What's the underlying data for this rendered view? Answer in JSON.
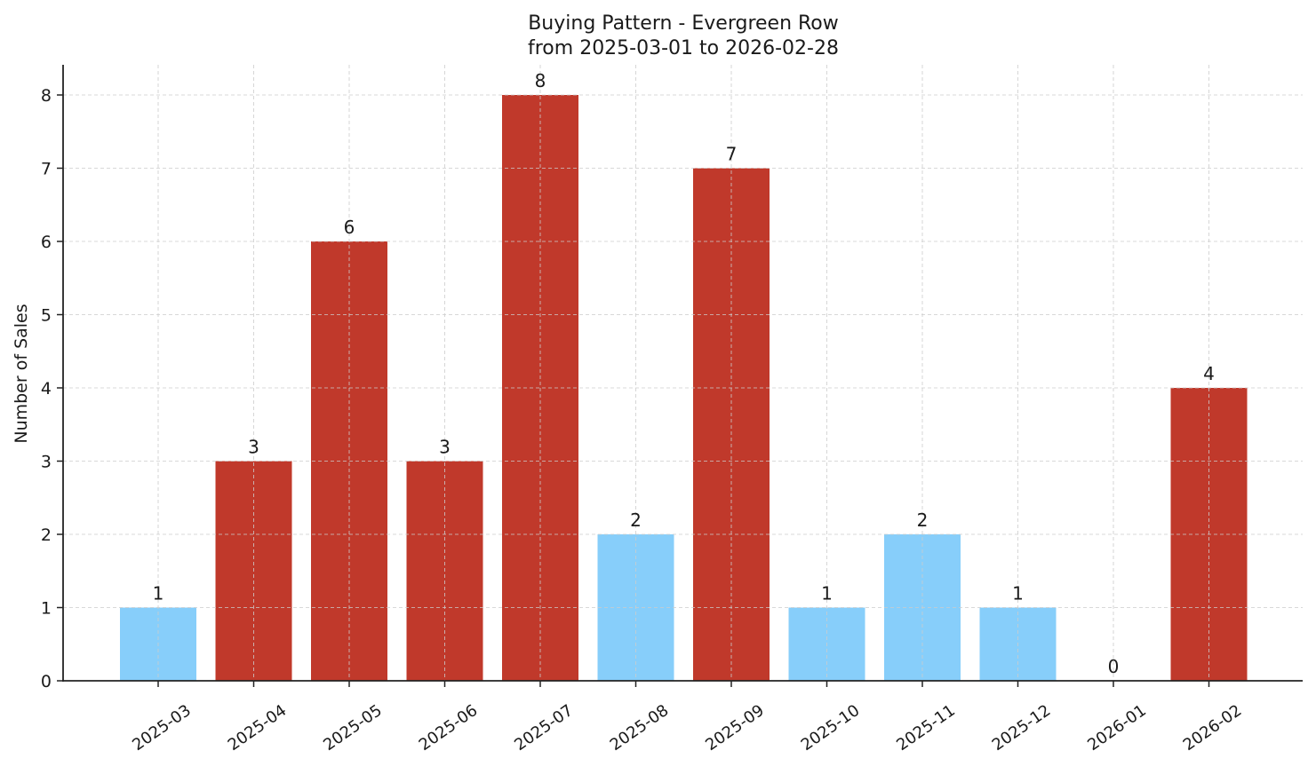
{
  "chart_data": {
    "type": "bar",
    "title": "Buying Pattern - Evergreen Row",
    "subtitle": "from 2025-03-01 to 2026-02-28",
    "xlabel": "",
    "ylabel": "Number of Sales",
    "categories": [
      "2025-03",
      "2025-04",
      "2025-05",
      "2025-06",
      "2025-07",
      "2025-08",
      "2025-09",
      "2025-10",
      "2025-11",
      "2025-12",
      "2026-01",
      "2026-02"
    ],
    "values": [
      1,
      3,
      6,
      3,
      8,
      2,
      7,
      1,
      2,
      1,
      0,
      4
    ],
    "bar_colors": [
      "#87cefa",
      "#c0392b",
      "#c0392b",
      "#c0392b",
      "#c0392b",
      "#87cefa",
      "#c0392b",
      "#87cefa",
      "#87cefa",
      "#87cefa",
      "#87cefa",
      "#c0392b"
    ],
    "data_labels": [
      "1",
      "3",
      "6",
      "3",
      "8",
      "2",
      "7",
      "1",
      "2",
      "1",
      "0",
      "4"
    ],
    "ylim": [
      0,
      8.4
    ],
    "yticks": [
      0,
      1,
      2,
      3,
      4,
      5,
      6,
      7,
      8
    ],
    "grid": true,
    "legend": null,
    "colors": {
      "high": "#c0392b",
      "low": "#87cefa"
    }
  }
}
